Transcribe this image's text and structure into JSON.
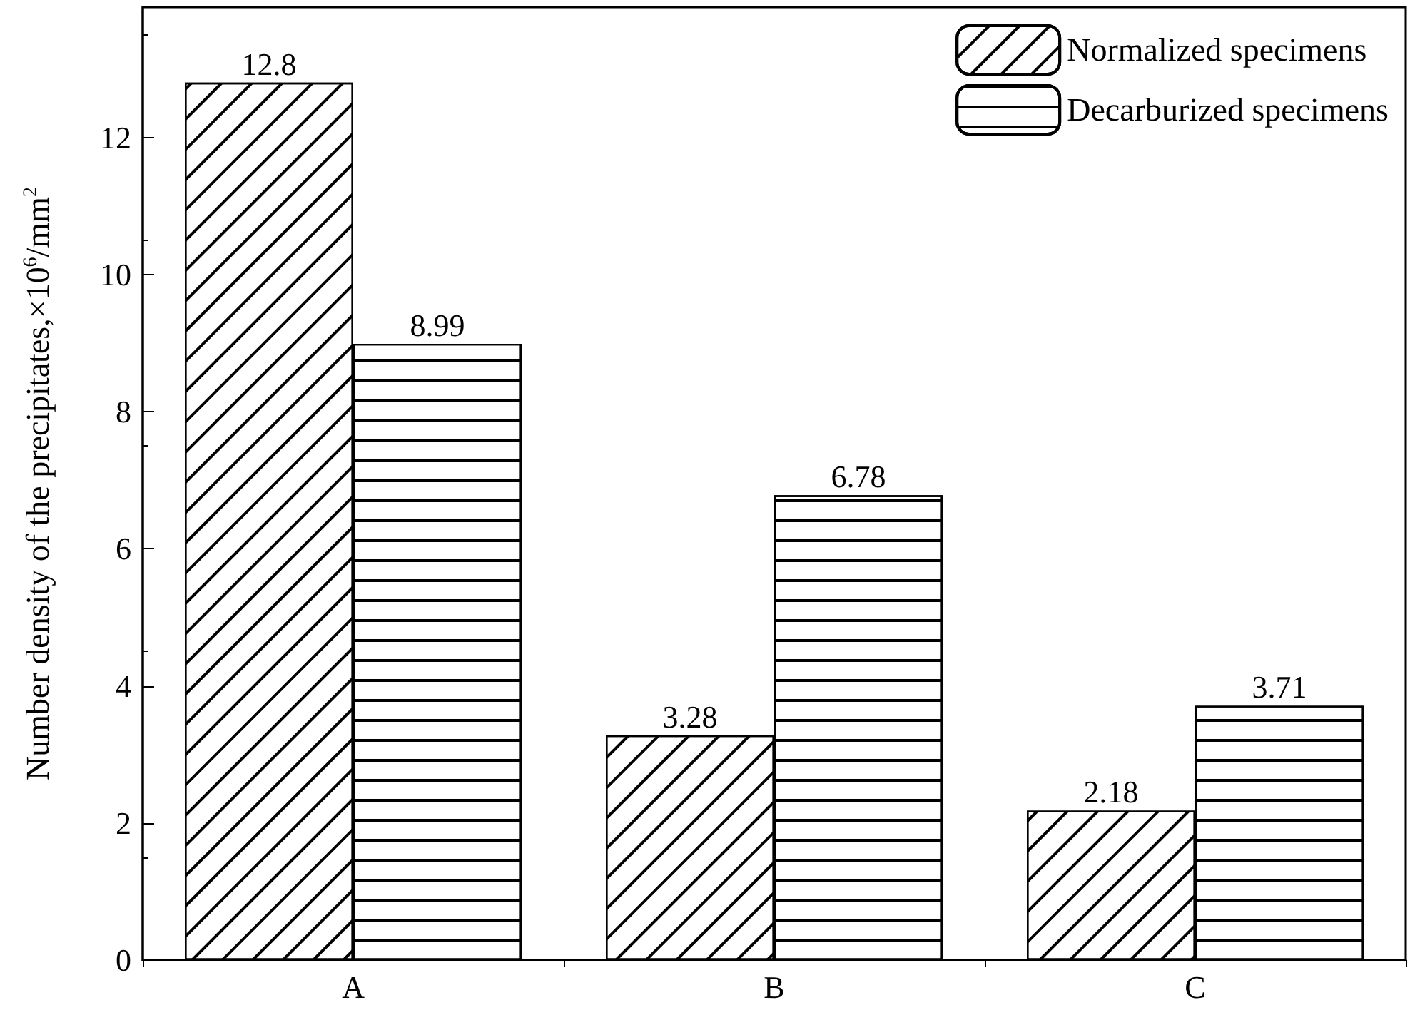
{
  "chart_data": {
    "type": "bar",
    "ylabel": "Number density of the precipitates,×10$^{6}$/mm$^{2}$",
    "categories": [
      "A",
      "B",
      "C"
    ],
    "series": [
      {
        "name": "Normalized specimens",
        "color": "#000000",
        "values": [
          12.8,
          3.28,
          2.18
        ]
      },
      {
        "name": "Decarburized specimens",
        "color": "#000000",
        "values": [
          8.99,
          6.78,
          3.71
        ]
      }
    ],
    "ylim": [
      0,
      13.9
    ],
    "yticks": [
      0,
      2,
      4,
      6,
      8,
      10,
      12
    ],
    "grid": false,
    "legend": "top right",
    "data_labels": true
  }
}
